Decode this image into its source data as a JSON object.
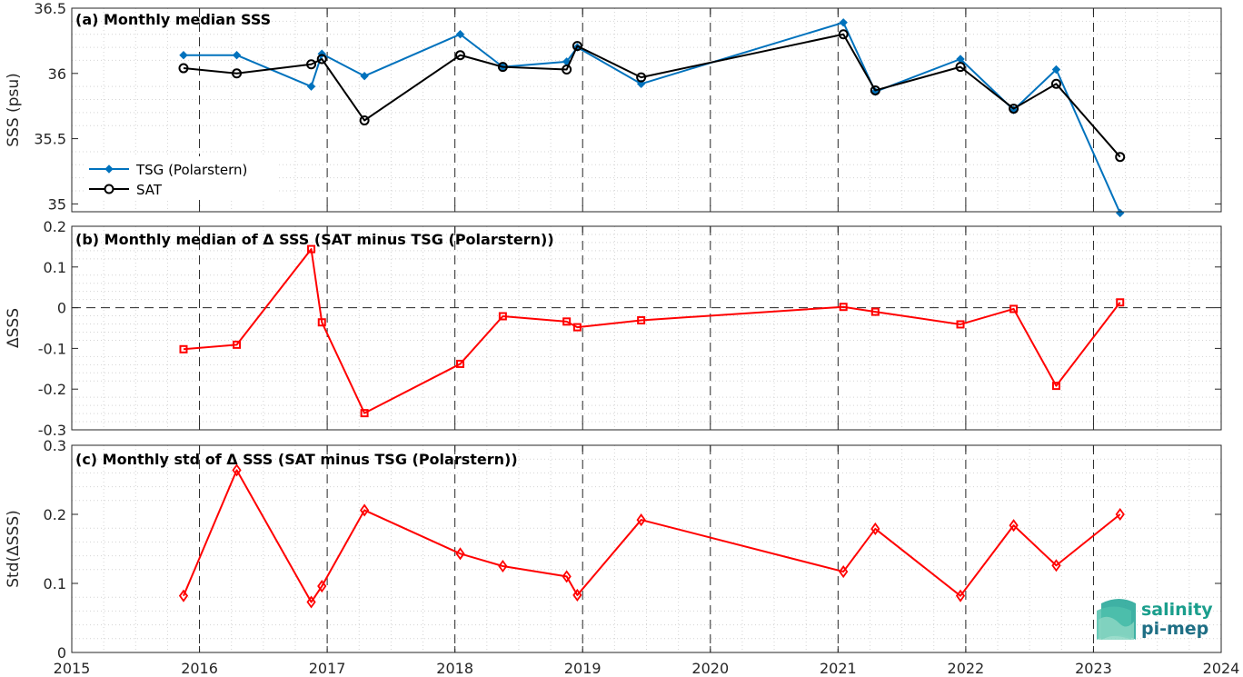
{
  "chart_data": [
    {
      "type": "line",
      "title": "(a) Monthly median SSS",
      "ylabel": "SSS (psu)",
      "xlabel": "",
      "xlim": [
        2015,
        2024
      ],
      "ylim": [
        34.94,
        36.5
      ],
      "yticks": [
        35,
        35.5,
        36,
        36.5
      ],
      "ytick_labels": [
        "35",
        "35.5",
        "36",
        "36.5"
      ],
      "grid": "dotted minor grid",
      "legend_position": "lower-left",
      "series": [
        {
          "name": "TSG (Polarstern)",
          "color": "#0072bd",
          "marker": "filled-diamond",
          "x": [
            "2015-11",
            "2016-04",
            "2016-11",
            "2016-12",
            "2017-04",
            "2018-01",
            "2018-05",
            "2018-11",
            "2018-12",
            "2019-06",
            "2021-01",
            "2021-04",
            "2021-12",
            "2022-05",
            "2022-09",
            "2023-03"
          ],
          "values": [
            36.14,
            36.14,
            35.9,
            36.15,
            35.98,
            36.3,
            36.05,
            36.09,
            36.2,
            35.92,
            36.39,
            35.86,
            36.11,
            35.72,
            36.03,
            34.93
          ]
        },
        {
          "name": "SAT",
          "color": "#000000",
          "marker": "open-circle",
          "x": [
            "2015-11",
            "2016-04",
            "2016-11",
            "2016-12",
            "2017-04",
            "2018-01",
            "2018-05",
            "2018-11",
            "2018-12",
            "2019-06",
            "2021-01",
            "2021-04",
            "2021-12",
            "2022-05",
            "2022-09",
            "2023-03"
          ],
          "values": [
            36.04,
            36.0,
            36.07,
            36.11,
            35.64,
            36.14,
            36.05,
            36.03,
            36.21,
            35.97,
            36.3,
            35.87,
            36.05,
            35.73,
            35.92,
            35.36
          ]
        }
      ]
    },
    {
      "type": "line",
      "title": "(b) Monthly median of Δ SSS (SAT minus TSG (Polarstern))",
      "ylabel": "ΔSSS",
      "xlabel": "",
      "xlim": [
        2015,
        2024
      ],
      "ylim": [
        -0.3,
        0.2
      ],
      "yticks": [
        -0.3,
        -0.2,
        -0.1,
        0,
        0.1,
        0.2
      ],
      "ytick_labels": [
        "-0.3",
        "-0.2",
        "-0.1",
        "0",
        "0.1",
        "0.2"
      ],
      "reference_line": 0,
      "grid": "dotted minor grid",
      "series": [
        {
          "color": "#ff0000",
          "marker": "open-square",
          "x": [
            "2015-11",
            "2016-04",
            "2016-11",
            "2016-12",
            "2017-04",
            "2018-01",
            "2018-05",
            "2018-11",
            "2018-12",
            "2019-06",
            "2021-01",
            "2021-04",
            "2021-12",
            "2022-05",
            "2022-09",
            "2023-03"
          ],
          "values": [
            -0.102,
            -0.091,
            0.144,
            -0.036,
            -0.259,
            -0.138,
            -0.021,
            -0.034,
            -0.048,
            -0.031,
            0.002,
            -0.01,
            -0.041,
            -0.003,
            -0.192,
            0.013
          ]
        }
      ]
    },
    {
      "type": "line",
      "title": "(c) Monthly std of Δ SSS (SAT minus TSG (Polarstern))",
      "ylabel": "Std(ΔSSS)",
      "xlabel": "",
      "xlim": [
        2015,
        2024
      ],
      "ylim": [
        0,
        0.3
      ],
      "yticks": [
        0,
        0.1,
        0.2,
        0.3
      ],
      "ytick_labels": [
        "0",
        "0.1",
        "0.2",
        "0.3"
      ],
      "grid": "dotted minor grid",
      "series": [
        {
          "color": "#ff0000",
          "marker": "open-diamond",
          "x": [
            "2015-11",
            "2016-04",
            "2016-11",
            "2016-12",
            "2017-04",
            "2018-01",
            "2018-05",
            "2018-11",
            "2018-12",
            "2019-06",
            "2021-01",
            "2021-04",
            "2021-12",
            "2022-05",
            "2022-09",
            "2023-03"
          ],
          "values": [
            0.082,
            0.264,
            0.073,
            0.096,
            0.206,
            0.143,
            0.125,
            0.11,
            0.083,
            0.192,
            0.117,
            0.179,
            0.082,
            0.184,
            0.126,
            0.2
          ]
        }
      ]
    }
  ],
  "x_tick_labels": [
    "2015",
    "2016",
    "2017",
    "2018",
    "2019",
    "2020",
    "2021",
    "2022",
    "2023",
    "2024"
  ],
  "logo": {
    "line1": "salinity",
    "line2": "pi-mep"
  }
}
